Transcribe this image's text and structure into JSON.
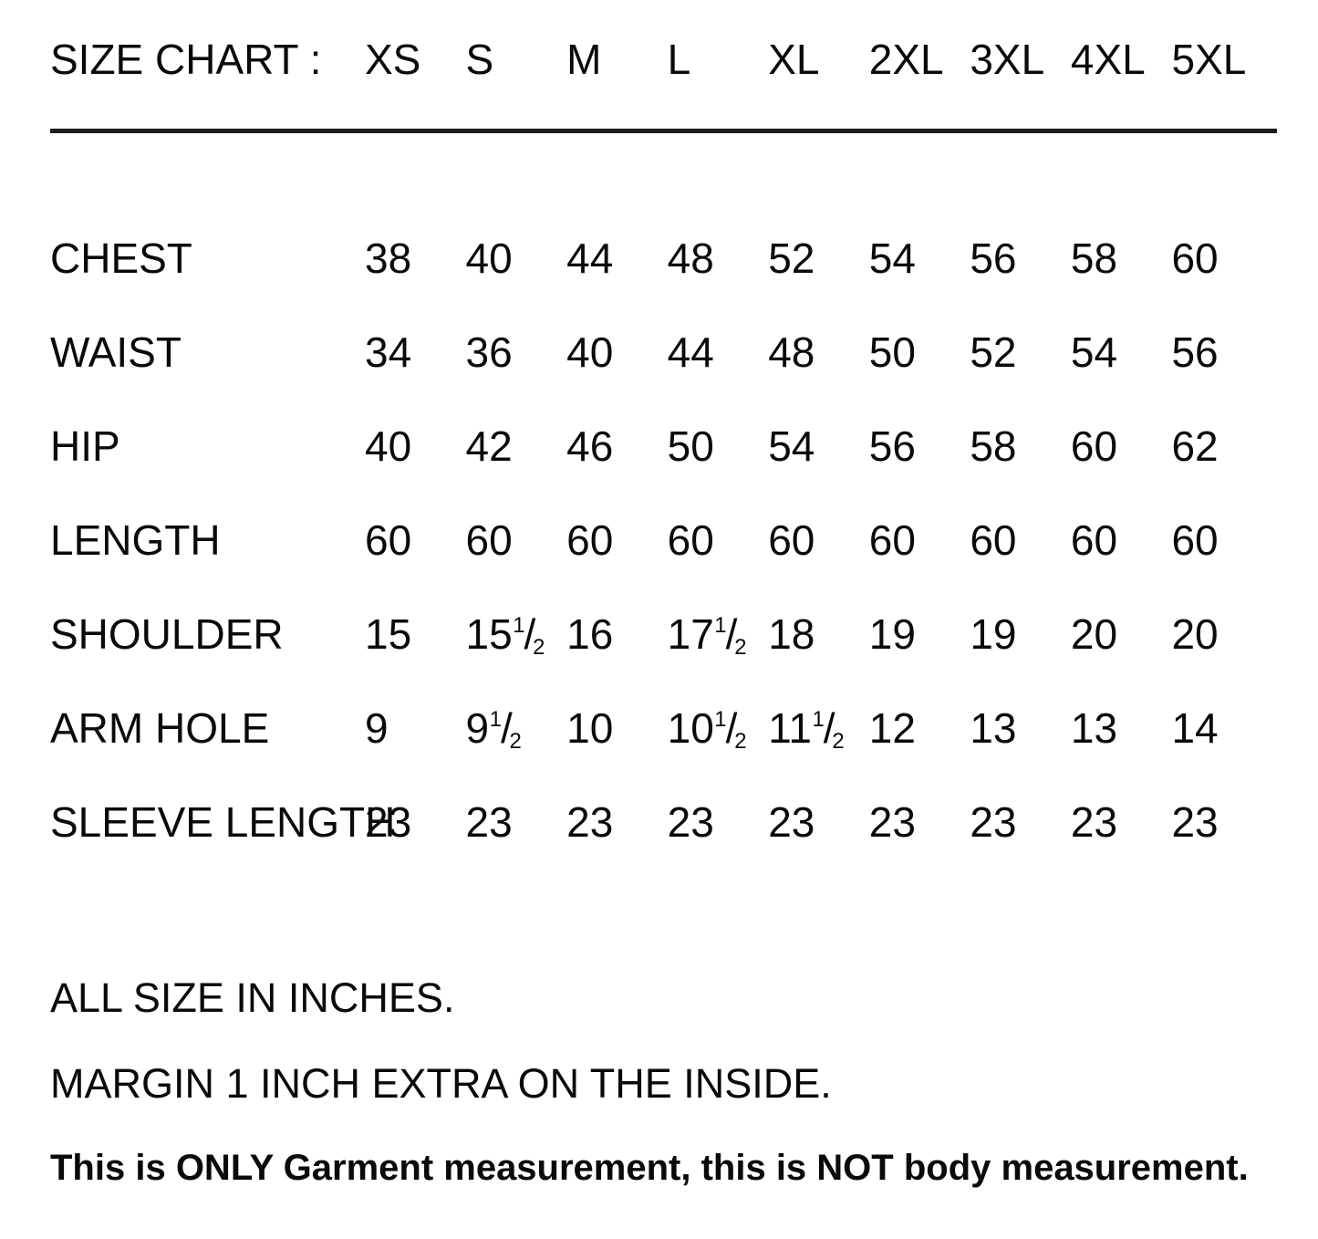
{
  "chart_data": {
    "type": "table",
    "title": "SIZE CHART :",
    "columns": [
      "XS",
      "S",
      "M",
      "L",
      "XL",
      "2XL",
      "3XL",
      "4XL",
      "5XL"
    ],
    "rows": [
      {
        "label": "CHEST",
        "values": [
          "38",
          "40",
          "44",
          "48",
          "52",
          "54",
          "56",
          "58",
          "60"
        ]
      },
      {
        "label": "WAIST",
        "values": [
          "34",
          "36",
          "40",
          "44",
          "48",
          "50",
          "52",
          "54",
          "56"
        ]
      },
      {
        "label": "HIP",
        "values": [
          "40",
          "42",
          "46",
          "50",
          "54",
          "56",
          "58",
          "60",
          "62"
        ]
      },
      {
        "label": "LENGTH",
        "values": [
          "60",
          "60",
          "60",
          "60",
          "60",
          "60",
          "60",
          "60",
          "60"
        ]
      },
      {
        "label": "SHOULDER",
        "values": [
          "15",
          "15 1/2",
          "16",
          "17 1/2",
          "18",
          "19",
          "19",
          "20",
          "20"
        ]
      },
      {
        "label": "ARM HOLE",
        "values": [
          "9",
          "9 1/2",
          "10",
          "10 1/2",
          "11 1/2",
          "12",
          "13",
          "13",
          "14"
        ]
      },
      {
        "label": "SLEEVE LENGTH",
        "values": [
          "23",
          "23",
          "23",
          "23",
          "23",
          "23",
          "23",
          "23",
          "23"
        ]
      }
    ],
    "notes": [
      {
        "text": "ALL SIZE IN INCHES.",
        "bold": false
      },
      {
        "text": "MARGIN 1 INCH EXTRA ON THE INSIDE.",
        "bold": false
      },
      {
        "text": "This is ONLY Garment measurement, this is NOT body measurement.",
        "bold": true
      }
    ],
    "units": "inches",
    "text_color": "#0a0a0a",
    "background_color": "#ffffff"
  }
}
